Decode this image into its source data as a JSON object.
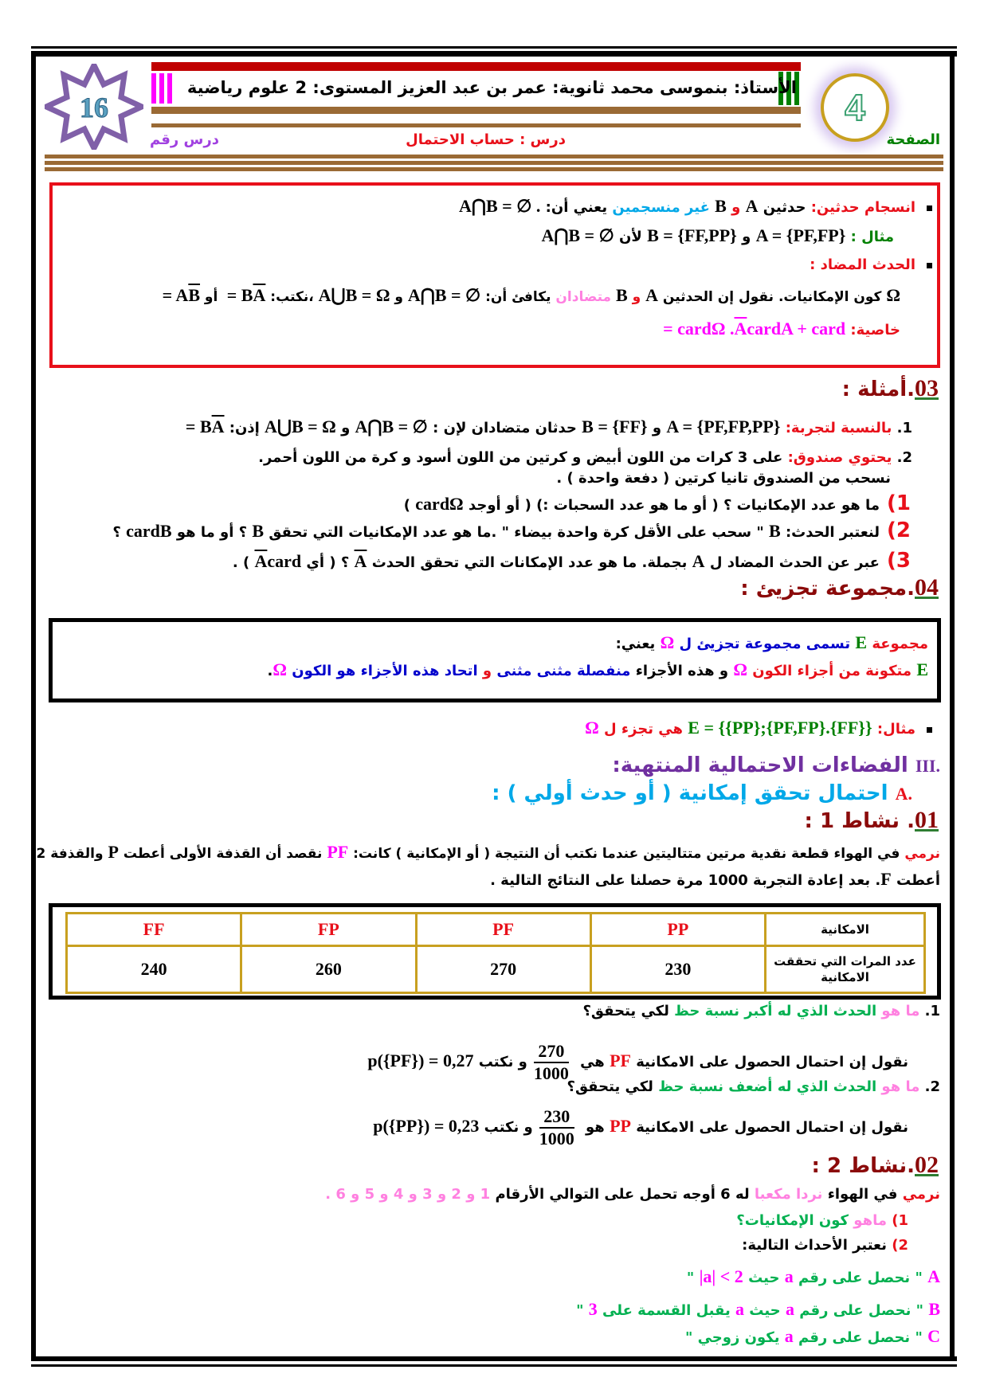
{
  "colors": {
    "k": "#000000",
    "r": "#e8101a",
    "c": "#00a8e8",
    "g": "#008000",
    "m": "#ff00ff",
    "p": "#ff80e0",
    "d": "#8b0a0a",
    "v": "#7030a0",
    "b": "#0000cc",
    "G": "#00b050",
    "brown": "#9a6a35"
  },
  "header": {
    "badge_number": "16",
    "title": "الأستاذ: بنموسى محمد  ثانوية: عمر بن عبد العزيز المستوى: 2 علوم رياضية",
    "page_label": "الصفحة",
    "page_number": "4",
    "lesson_label": "درس  : حساب الاحتمال",
    "lesson_number_label": "درس رقم"
  },
  "lines": {
    "rb1": [
      [
        "انسجام حدثين: ",
        "r"
      ],
      [
        "حدثين ",
        "k"
      ],
      [
        "A",
        "k",
        "m"
      ],
      [
        " و ",
        "r"
      ],
      [
        "B",
        "k",
        "m"
      ],
      [
        " غير منسجمين",
        "c"
      ],
      [
        " يعني أن: ",
        "k"
      ],
      [
        "A⋂B = ∅ .",
        "k",
        "m"
      ]
    ],
    "rb2": [
      [
        "مثال : ",
        "g"
      ],
      [
        "A = {PF,FP}",
        "k",
        "m"
      ],
      [
        " و ",
        "k"
      ],
      [
        "B = {FF,PP}",
        "k",
        "m"
      ],
      [
        " لأن ",
        "k"
      ],
      [
        "A⋂B = ∅",
        "k",
        "m"
      ]
    ],
    "rb3": [
      [
        "الحدث المضاد :",
        "r"
      ]
    ],
    "rb4": [
      [
        "Ω",
        "k",
        "m"
      ],
      [
        " كون الإمكانيات. نقول إن الحدثين ",
        "k"
      ],
      [
        "A",
        "k",
        "m"
      ],
      [
        " و ",
        "r"
      ],
      [
        "B",
        "k",
        "m"
      ],
      [
        "  متضادان",
        "p"
      ],
      [
        "  يكافئ أن: ",
        "k"
      ],
      [
        "A⋂B = ∅",
        "k",
        "m"
      ],
      [
        "  و  ",
        "k"
      ],
      [
        "A⋃B = Ω",
        "k",
        "m"
      ],
      [
        " ،نكتب: ",
        "k"
      ],
      [
        "A",
        "k",
        "mo"
      ],
      [
        " = B",
        "k",
        "m"
      ],
      [
        "  أو  ",
        "k"
      ],
      [
        "B",
        "k",
        "mo"
      ],
      [
        " = A",
        "k",
        "m"
      ]
    ],
    "rb5": [
      [
        "خاصية:  ",
        "r"
      ],
      [
        "cardA + card",
        "m",
        "m"
      ],
      [
        "A",
        "m",
        "mo"
      ],
      [
        " = cardΩ .",
        "m",
        "m"
      ]
    ],
    "s03": [
      [
        "03",
        "d",
        "num"
      ],
      [
        ".أمثلة :",
        "d",
        "big"
      ]
    ],
    "e1": [
      [
        "1.  ",
        "k"
      ],
      [
        "بالنسبة لتجربة: ",
        "r"
      ],
      [
        "A = {PF,FP,PP}",
        "k",
        "m"
      ],
      [
        " و ",
        "k"
      ],
      [
        "B = {FF}",
        "k",
        "m"
      ],
      [
        " حدثان متضادان لإن : ",
        "k"
      ],
      [
        "A⋂B = ∅",
        "k",
        "m"
      ],
      [
        " و ",
        "k"
      ],
      [
        "A⋃B = Ω",
        "k",
        "m"
      ],
      [
        "  إذن: ",
        "k"
      ],
      [
        "A",
        "k",
        "mo"
      ],
      [
        " = B",
        "k",
        "m"
      ]
    ],
    "e2": [
      [
        "2.  ",
        "k"
      ],
      [
        "يحتوي صندوق: ",
        "r"
      ],
      [
        "على 3 كرات من اللون أبيض و كرتين من اللون أسود و  كرة من اللون أحمر.",
        "k"
      ]
    ],
    "e2b": [
      [
        "نسحب من الصندوق تانيا كرتين ( دفعة واحدة ) .",
        "k"
      ]
    ],
    "q1": [
      [
        "1) ",
        "r",
        "big"
      ],
      [
        "ما هو عدد الإمكانيات ؟ ( أو ما هو عدد السحبات :) ( أو  أوجد  ",
        "k"
      ],
      [
        "cardΩ",
        "k",
        "m"
      ],
      [
        " )",
        "k"
      ]
    ],
    "q2": [
      [
        "2) ",
        "r",
        "big"
      ],
      [
        "لنعتبر الحدث:  ",
        "k"
      ],
      [
        "B",
        "k",
        "m"
      ],
      [
        " \" سحب على الأقل كرة واحدة بيضاء \" .ما هو عدد الإمكانيات التي تحقق ",
        "k"
      ],
      [
        "B",
        "k",
        "m"
      ],
      [
        " ؟ أو ما هو  ",
        "k"
      ],
      [
        "cardB",
        "k",
        "m"
      ],
      [
        "  ؟",
        "k"
      ]
    ],
    "q3": [
      [
        "3) ",
        "r",
        "big"
      ],
      [
        "عبر عن الحدث المضاد ل  ",
        "k"
      ],
      [
        "A",
        "k",
        "m"
      ],
      [
        "  بجملة. ما هو عدد الإمكانات التي تحقق الحدث  ",
        "k"
      ],
      [
        "A",
        "k",
        "mo"
      ],
      [
        "  ؟  ( أي ",
        "k"
      ],
      [
        "card",
        "k",
        "m"
      ],
      [
        "A",
        "k",
        "mo"
      ],
      [
        " ) .",
        "k"
      ]
    ],
    "s04": [
      [
        "04",
        "d",
        "num"
      ],
      [
        ".مجموعة تجزيئ :",
        "d",
        "big"
      ]
    ],
    "bb1": [
      [
        "مجموعة  ",
        "r"
      ],
      [
        "E",
        "g",
        "m"
      ],
      [
        "  تسمى مجموعة تجزيئ ل  ",
        "b"
      ],
      [
        "Ω",
        "m",
        "m"
      ],
      [
        "  يعني:",
        "k"
      ]
    ],
    "bb2": [
      [
        "E",
        "g",
        "m"
      ],
      [
        "  متكونة من أجزاء الكون  ",
        "r"
      ],
      [
        "Ω",
        "m",
        "m"
      ],
      [
        "  و هذه الأجزاء ",
        "k"
      ],
      [
        "منفصلة مثنى مثنى",
        "b"
      ],
      [
        "  و  ",
        "r"
      ],
      [
        "اتحاد هذه الأجزاء هو الكون",
        "b"
      ],
      [
        "   ",
        "k"
      ],
      [
        "Ω",
        "m",
        "m"
      ],
      [
        ".",
        "k"
      ]
    ],
    "ex": [
      [
        "مثال:  ",
        "r"
      ],
      [
        "E = {{PP};{PF,FP}.{FF}}",
        "g",
        "m"
      ],
      [
        "  هي تجزء ل  ",
        "r"
      ],
      [
        "Ω",
        "m",
        "m"
      ]
    ],
    "s3": [
      [
        "III.",
        "v",
        "m"
      ],
      [
        "  الفضاءات الاحتمالية المنتهية:",
        "v",
        "big"
      ]
    ],
    "sA": [
      [
        "A.",
        "r",
        "m"
      ],
      [
        "  احتمال تحقق إمكانية ( أو حدث أولي ) :",
        "c",
        "big"
      ]
    ],
    "s01": [
      [
        "01",
        "d",
        "num"
      ],
      [
        ". نشاط 1 :",
        "d",
        "big"
      ]
    ],
    "p1": [
      [
        "نرمي",
        "r"
      ],
      [
        " في الهواء قطعة نقدية مرتين متتاليتين عندما نكتب أن النتيجة  ( أو الإمكانية ) كانت:  ",
        "k"
      ],
      [
        "PF",
        "m",
        "m"
      ],
      [
        "  نقصد أن القذفة الأولى أعطت ",
        "k"
      ],
      [
        "P",
        "k",
        "m"
      ],
      [
        "  والقذفة 2",
        "k"
      ]
    ],
    "p1b": [
      [
        "أعطت ",
        "k"
      ],
      [
        "F",
        "k",
        "m"
      ],
      [
        ". بعد إعادة التجربة 1000 مرة حصلنا على النتائج التالية .",
        "k"
      ]
    ],
    "a1": [
      [
        "1.  ",
        "k"
      ],
      [
        "ما هو ",
        "p"
      ],
      [
        "الحدث الذي له أكبر نسبة حظ",
        "G"
      ],
      [
        "  لكي يتحقق؟",
        "k"
      ]
    ],
    "a1f": [
      [
        "نقول إن احتمال الحصول على الامكانية ",
        "k"
      ],
      [
        "PF",
        "r",
        "m"
      ],
      [
        "  هي ",
        "k"
      ],
      [
        "FRAC1",
        "k",
        "frac"
      ],
      [
        "و نكتب  ",
        "k"
      ],
      [
        "p({PF}) = 0,27",
        "k",
        "m"
      ]
    ],
    "a2": [
      [
        "2.  ",
        "k"
      ],
      [
        "ما هو ",
        "p"
      ],
      [
        "الحدث الذي له أضعف نسبة حظ",
        "G"
      ],
      [
        "  لكي يتحقق؟",
        "k"
      ]
    ],
    "a2f": [
      [
        "نقول إن احتمال الحصول على الامكانية ",
        "k"
      ],
      [
        "PP",
        "r",
        "m"
      ],
      [
        "  هو ",
        "k"
      ],
      [
        "FRAC2",
        "k",
        "frac"
      ],
      [
        "و نكتب ",
        "k"
      ],
      [
        "p({PP}) = 0,23",
        "k",
        "m"
      ]
    ],
    "s02": [
      [
        "02",
        "d",
        "num"
      ],
      [
        ".نشاط 2 :",
        "d",
        "big"
      ]
    ],
    "p2": [
      [
        "نرمي",
        "r"
      ],
      [
        " في الهواء ",
        "k"
      ],
      [
        "نردا مكعبا",
        "p"
      ],
      [
        " له 6 أوجه تحمل على التوالي الأرقام ",
        "k"
      ],
      [
        "1 و 2 و 3 و 4 و 5 و 6 .",
        "p"
      ]
    ],
    "b1": [
      [
        "1)  ",
        "r"
      ],
      [
        "ماهو ",
        "p"
      ],
      [
        "كون الإمكانيات؟",
        "G"
      ]
    ],
    "b2": [
      [
        "2)  ",
        "r"
      ],
      [
        "نعتبر الأحداث التالية:",
        "k"
      ]
    ],
    "eA": [
      [
        "A",
        "m",
        "m"
      ],
      [
        " \" نحصل على رقم  ",
        "G"
      ],
      [
        "a",
        "m",
        "m"
      ],
      [
        "  حيث  ",
        "G"
      ],
      [
        "|a| < 2",
        "m",
        "m"
      ],
      [
        "  \"",
        "G"
      ]
    ],
    "eB": [
      [
        "B",
        "m",
        "m"
      ],
      [
        " \" نحصل على رقم  ",
        "G"
      ],
      [
        "a",
        "m",
        "m"
      ],
      [
        "  حيث ",
        "G"
      ],
      [
        "a",
        "m",
        "m"
      ],
      [
        " يقبل القسمة على  ",
        "G"
      ],
      [
        "3",
        "m",
        "m"
      ],
      [
        "  \"",
        "G"
      ]
    ],
    "eC": [
      [
        "C",
        "m",
        "m"
      ],
      [
        " \" نحصل على رقم  ",
        "G"
      ],
      [
        "a",
        "m",
        "m"
      ],
      [
        "  يكون زوجي \"",
        "G"
      ]
    ]
  },
  "fractions": {
    "FRAC1": {
      "num": "270",
      "den": "1000"
    },
    "FRAC2": {
      "num": "230",
      "den": "1000"
    }
  },
  "table": {
    "row_labels": [
      "الامكانية",
      "عدد المرات التي تحققت الامكانية"
    ],
    "outcomes": [
      "PP",
      "PF",
      "FP",
      "FF"
    ],
    "counts": [
      "230",
      "270",
      "260",
      "240"
    ]
  }
}
